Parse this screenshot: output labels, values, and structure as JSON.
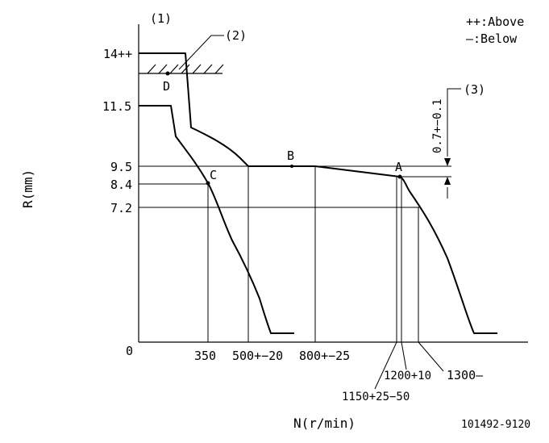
{
  "header": {
    "ref1": "(1)",
    "ref2": "(2)",
    "ref3": "(3)",
    "legend_above": "++:Above",
    "legend_below": "—:Below"
  },
  "axes": {
    "ylabel": "R(mm)",
    "xlabel": "N(r/min)",
    "origin": "0",
    "y_ticks": [
      "14++",
      "11.5",
      "9.5",
      "8.4",
      "7.2"
    ],
    "x_ticks": [
      "350",
      "500+−20",
      "800+−25",
      "1150+25−50",
      "1200+10",
      "1300—"
    ]
  },
  "points": {
    "A": "A",
    "B": "B",
    "C": "C",
    "D": "D"
  },
  "dimension": "0.7+−0.1",
  "doc_number": "101492-9120"
}
